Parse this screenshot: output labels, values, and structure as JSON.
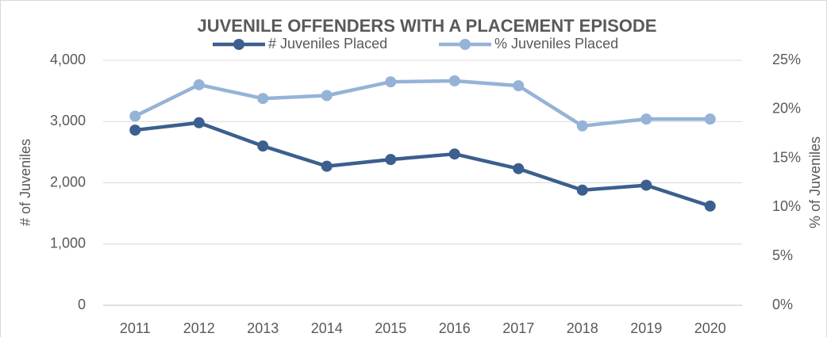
{
  "chart_data": {
    "type": "line",
    "title": "JUVENILE OFFENDERS WITH A PLACEMENT EPISODE",
    "y_label": "# of Juveniles",
    "y2_label": "% of Juveniles",
    "categories": [
      "2011",
      "2012",
      "2013",
      "2014",
      "2015",
      "2016",
      "2017",
      "2018",
      "2019",
      "2020"
    ],
    "series": [
      {
        "name": "# Juveniles Placed",
        "color": "#3b5f8e",
        "values": [
          2860,
          2980,
          2600,
          2270,
          2380,
          2470,
          2230,
          1880,
          1960,
          1620
        ]
      },
      {
        "name": "% Juveniles Placed",
        "color": "#95b3d7",
        "axis": "y2",
        "values": [
          19.3,
          22.5,
          21.1,
          21.4,
          22.8,
          22.9,
          22.4,
          18.3,
          19.0,
          19.0
        ]
      }
    ],
    "ylim": [
      0,
      4000
    ],
    "yticks": [
      0,
      {
        "value": 1000,
        "label": "1,000"
      },
      {
        "value": 2000,
        "label": "2,000"
      },
      {
        "value": 3000,
        "label": "3,000"
      },
      {
        "value": 4000,
        "label": "4,000"
      }
    ],
    "y2lim": [
      0,
      25
    ],
    "y2ticks": [
      {
        "value": 0,
        "label": "0%"
      },
      {
        "value": 5,
        "label": "5%"
      },
      {
        "value": 10,
        "label": "10%"
      },
      {
        "value": 15,
        "label": "15%"
      },
      {
        "value": 20,
        "label": "20%"
      },
      {
        "value": 25,
        "label": "25%"
      }
    ],
    "grid": true,
    "legend": "top"
  }
}
